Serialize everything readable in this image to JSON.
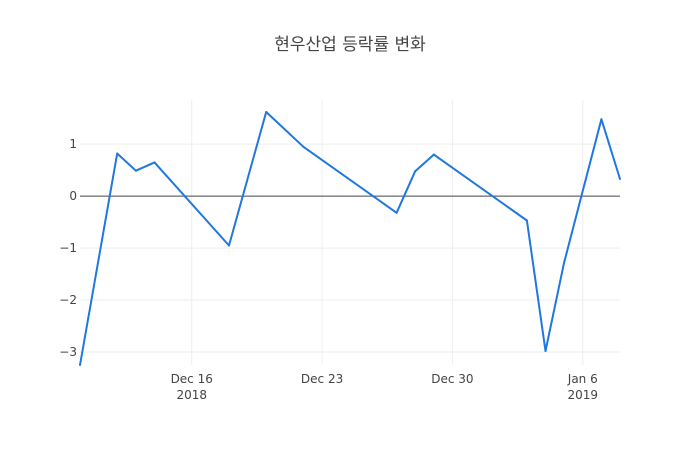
{
  "chart_data": {
    "type": "line",
    "title": "현우산업 등락률 변화",
    "xlabel": "",
    "ylabel": "",
    "series": [
      {
        "color": "#1f77e0",
        "points": [
          {
            "x": "2018-12-10",
            "y": -3.25
          },
          {
            "x": "2018-12-12",
            "y": 0.82
          },
          {
            "x": "2018-12-13",
            "y": 0.49
          },
          {
            "x": "2018-12-14",
            "y": 0.65
          },
          {
            "x": "2018-12-18",
            "y": -0.95
          },
          {
            "x": "2018-12-20",
            "y": 1.62
          },
          {
            "x": "2018-12-22",
            "y": 0.95
          },
          {
            "x": "2018-12-27",
            "y": -0.32
          },
          {
            "x": "2018-12-28",
            "y": 0.48
          },
          {
            "x": "2018-12-29",
            "y": 0.8
          },
          {
            "x": "2019-01-03",
            "y": -0.47
          },
          {
            "x": "2019-01-04",
            "y": -2.98
          },
          {
            "x": "2019-01-05",
            "y": -1.28
          },
          {
            "x": "2019-01-07",
            "y": 1.48
          },
          {
            "x": "2019-01-08",
            "y": 0.33
          }
        ]
      }
    ],
    "xlim": [
      "2018-12-10",
      "2019-01-08"
    ],
    "ylim": [
      -3.25,
      1.85
    ],
    "y_ticks": [
      {
        "value": 1,
        "label": "1"
      },
      {
        "value": 0,
        "label": "0"
      },
      {
        "value": -1,
        "label": "−1"
      },
      {
        "value": -2,
        "label": "−2"
      },
      {
        "value": -3,
        "label": "−3"
      }
    ],
    "x_ticks": [
      {
        "date": "2018-12-16",
        "label": "Dec 16",
        "sublabel": "2018"
      },
      {
        "date": "2018-12-23",
        "label": "Dec 23",
        "sublabel": ""
      },
      {
        "date": "2018-12-30",
        "label": "Dec 30",
        "sublabel": ""
      },
      {
        "date": "2019-01-06",
        "label": "Jan 6",
        "sublabel": "2019"
      }
    ],
    "grid": true,
    "zero_line": true,
    "legend": "none"
  }
}
